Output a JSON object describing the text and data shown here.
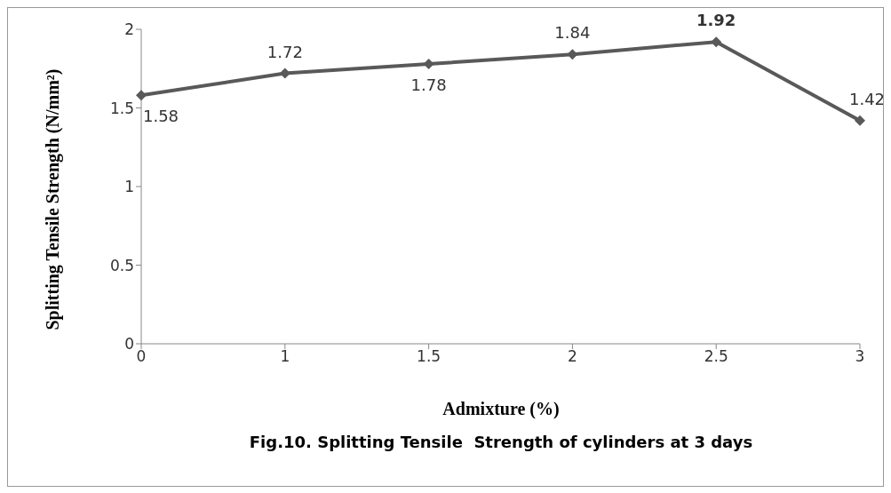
{
  "chart_data": {
    "type": "line",
    "title": "Fig.10. Splitting Tensile  Strength of cylinders at 3 days",
    "xlabel": "Admixture (%)",
    "ylabel": "Splitting Tensile Strength (N/mm²)",
    "categories": [
      "0",
      "1",
      "1.5",
      "2",
      "2.5",
      "3"
    ],
    "series": [
      {
        "color": "#595959",
        "values": [
          1.58,
          1.72,
          1.78,
          1.84,
          1.92,
          1.42
        ]
      }
    ],
    "ylim": [
      0,
      2
    ],
    "yticks": [
      0,
      0.5,
      1,
      1.5,
      2
    ],
    "grid": false,
    "legend": false,
    "marker": "diamond",
    "line_style": "solid",
    "data_labels": true
  }
}
